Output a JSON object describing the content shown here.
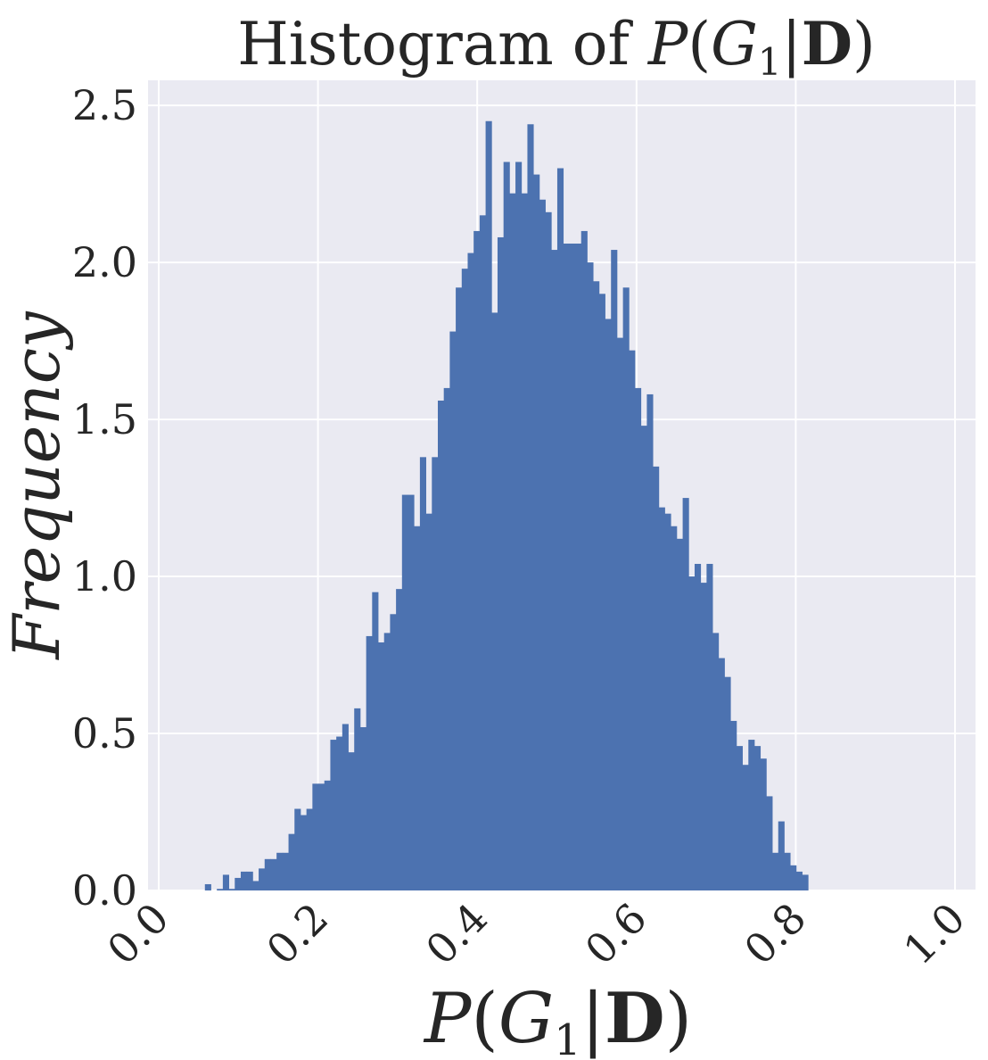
{
  "chart_data": {
    "type": "bar",
    "title_prefix": "Histogram of ",
    "math_label": {
      "p": "P",
      "open": "(",
      "g": "G",
      "sub": "1",
      "bar": "|",
      "d": "D",
      "close": ")"
    },
    "ylabel": "Frequency",
    "xlim": [
      0.0,
      1.0
    ],
    "ylim": [
      0.0,
      2.58
    ],
    "x_ticks": [
      "0.0",
      "0.2",
      "0.4",
      "0.6",
      "0.8",
      "1.0"
    ],
    "y_ticks": [
      "0.0",
      "0.5",
      "1.0",
      "1.5",
      "2.0",
      "2.5"
    ],
    "grid": true,
    "bar_color": "#4C72B0",
    "plot_bg": "#EAEAF2",
    "bin_start": 0.058,
    "bin_width": 0.0075,
    "values": [
      0.02,
      0.0,
      0.005,
      0.05,
      0.005,
      0.04,
      0.06,
      0.06,
      0.03,
      0.07,
      0.1,
      0.1,
      0.12,
      0.12,
      0.18,
      0.26,
      0.24,
      0.26,
      0.34,
      0.34,
      0.35,
      0.48,
      0.49,
      0.53,
      0.44,
      0.58,
      0.52,
      0.81,
      0.95,
      0.79,
      0.82,
      0.88,
      0.96,
      1.26,
      1.26,
      1.16,
      1.38,
      1.2,
      1.38,
      1.56,
      1.6,
      1.78,
      1.92,
      1.98,
      2.03,
      2.1,
      2.15,
      2.45,
      1.84,
      2.08,
      2.32,
      2.22,
      2.32,
      2.22,
      2.44,
      2.28,
      2.2,
      2.16,
      2.04,
      2.3,
      2.06,
      2.06,
      2.06,
      2.1,
      2.0,
      1.94,
      1.9,
      1.82,
      2.04,
      1.76,
      1.92,
      1.72,
      1.6,
      1.48,
      1.58,
      1.35,
      1.22,
      1.2,
      1.16,
      1.12,
      1.25,
      1.0,
      1.04,
      0.98,
      1.04,
      0.82,
      0.74,
      0.68,
      0.54,
      0.46,
      0.4,
      0.48,
      0.46,
      0.42,
      0.3,
      0.12,
      0.22,
      0.12,
      0.08,
      0.06,
      0.05
    ]
  }
}
